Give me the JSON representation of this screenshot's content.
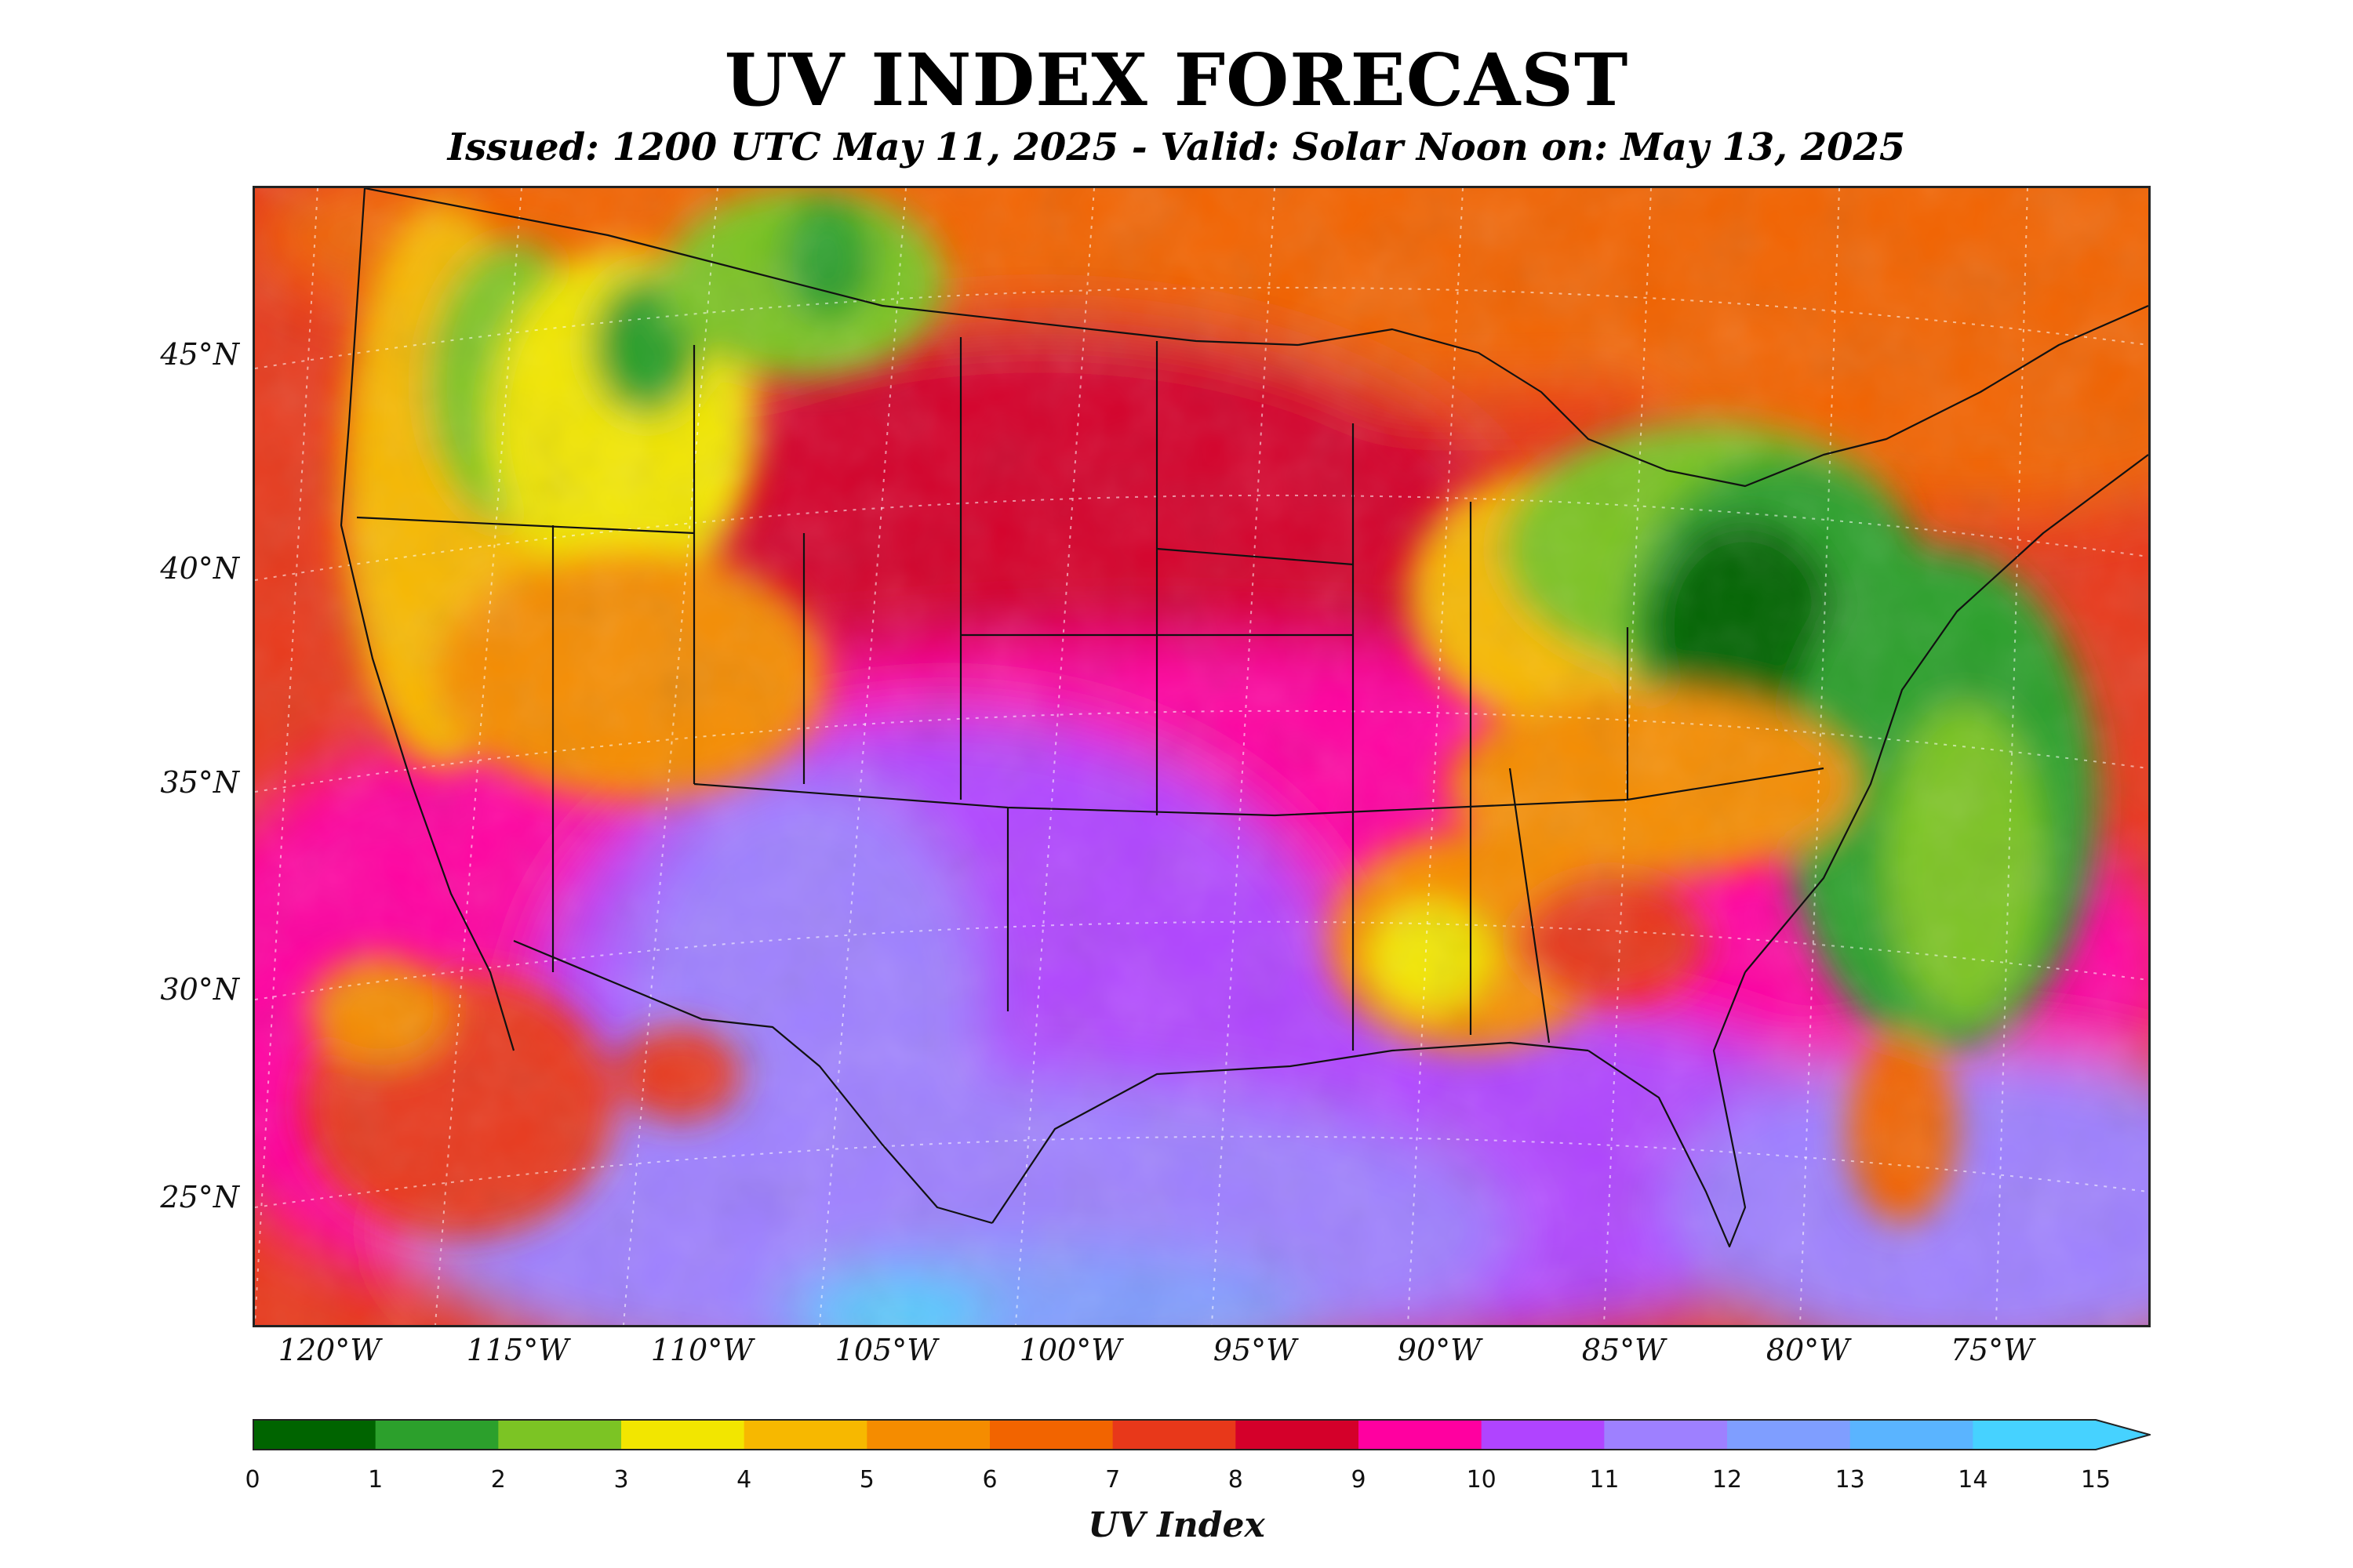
{
  "title": "UV INDEX FORECAST",
  "subtitle": "Issued: 1200 UTC May 11, 2025 - Valid: Solar Noon on: May 13, 2025",
  "map": {
    "lat_labels": [
      "45°N",
      "40°N",
      "35°N",
      "30°N",
      "25°N"
    ],
    "lon_labels": [
      "120°W",
      "115°W",
      "110°W",
      "105°W",
      "100°W",
      "95°W",
      "90°W",
      "85°W",
      "80°W",
      "75°W"
    ],
    "extent": {
      "lon_min": -122.5,
      "lon_max": -71,
      "lat_min": 22,
      "lat_max": 49
    }
  },
  "colorbar": {
    "label": "UV Index",
    "ticks": [
      "0",
      "1",
      "2",
      "3",
      "4",
      "5",
      "6",
      "7",
      "8",
      "9",
      "10",
      "11",
      "12",
      "13",
      "14",
      "15"
    ],
    "colors": [
      "#006400",
      "#2ca02c",
      "#7cc424",
      "#f2e600",
      "#f7b800",
      "#f58c00",
      "#f26400",
      "#e8381a",
      "#d4002a",
      "#ff00a0",
      "#b044ff",
      "#9e80ff",
      "#7f9eff",
      "#5ab4ff",
      "#46d2ff"
    ],
    "extend": "max"
  }
}
